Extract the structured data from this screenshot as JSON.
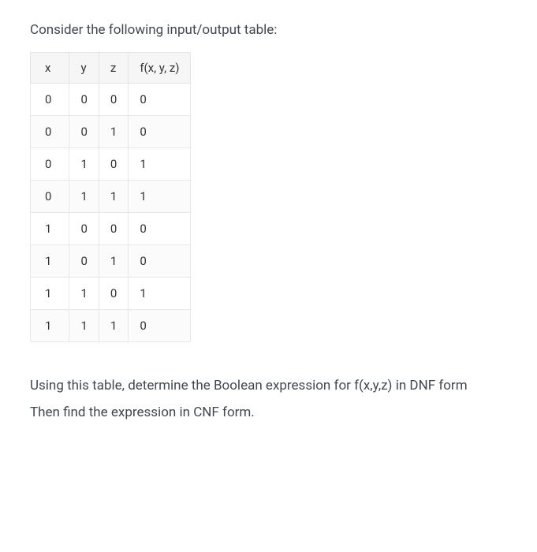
{
  "intro": "Consider the following input/output table:",
  "table": {
    "columns": [
      "x",
      "y",
      "z",
      "f(x, y, z)"
    ],
    "rows": [
      [
        "0",
        "0",
        "0",
        "0"
      ],
      [
        "0",
        "0",
        "1",
        "0"
      ],
      [
        "0",
        "1",
        "0",
        "1"
      ],
      [
        "0",
        "1",
        "1",
        "1"
      ],
      [
        "1",
        "0",
        "0",
        "0"
      ],
      [
        "1",
        "0",
        "1",
        "0"
      ],
      [
        "1",
        "1",
        "0",
        "1"
      ],
      [
        "1",
        "1",
        "1",
        "0"
      ]
    ],
    "header_bg": "#f6f6f6",
    "border_color": "#e5e5e5",
    "text_color": "#333333",
    "row_even_bg": "#fbfbfb",
    "row_odd_bg": "#ffffff",
    "font_size": 15
  },
  "question_line1": "Using this table, determine the Boolean expression for f(x,y,z) in DNF form",
  "question_line2": "Then find the expression in CNF form.",
  "body": {
    "text_color": "#414850",
    "background_color": "#ffffff",
    "font_size": 17
  }
}
